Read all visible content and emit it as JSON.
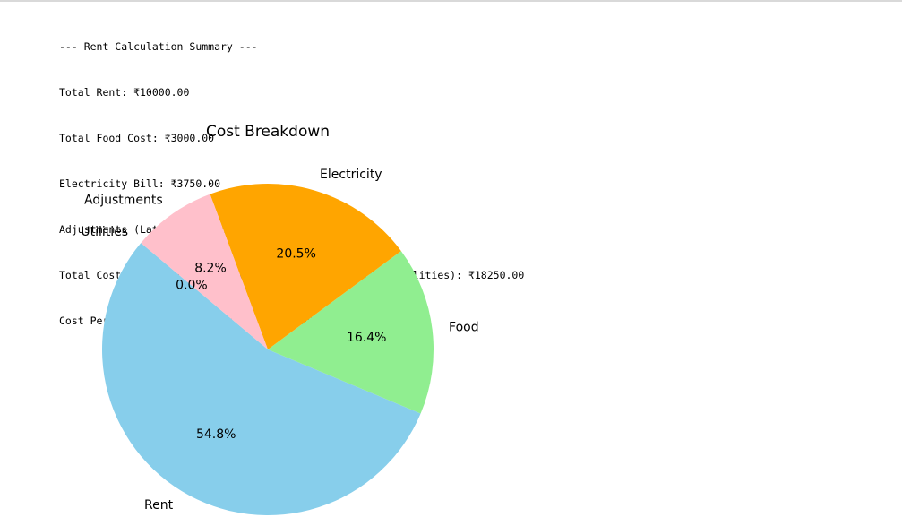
{
  "summary": {
    "lines": [
      "--- Rent Calculation Summary ---",
      "Total Rent: ₹10000.00",
      "Total Food Cost: ₹3000.00",
      "Electricity Bill: ₹3750.00",
      "Adjustments (Late Fee/Discount): ₹1500.00",
      "Total Cost (Rent + Food + Electricity + Adjustments + Utilities): ₹18250.00",
      "Cost Per Person (split among 4): ₹4562.50"
    ]
  },
  "chart_data": {
    "type": "pie",
    "title": "Cost Breakdown",
    "categories": [
      "Rent",
      "Food",
      "Electricity",
      "Adjustments",
      "Utilities"
    ],
    "values": [
      10000,
      3000,
      3750,
      1500,
      0
    ],
    "pct_labels": [
      "54.8%",
      "16.4%",
      "20.5%",
      "8.2%",
      "0.0%"
    ],
    "colors": [
      "#87CEEB",
      "#90EE90",
      "#FFA500",
      "#FFC0CB",
      "#D3D3D3"
    ],
    "start_angle_deg": 140,
    "direction": "counterclockwise"
  }
}
